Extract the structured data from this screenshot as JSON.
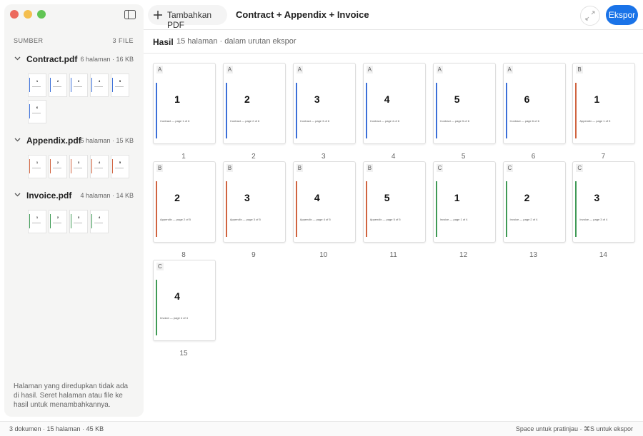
{
  "toolbar": {
    "add_button": "Tambahkan PDF",
    "title": "Contract + Appendix + Invoice",
    "export_button": "Ekspor"
  },
  "sidebar": {
    "heading": "SUMBER",
    "count": "3 FILE",
    "files": [
      {
        "name": "Contract.pdf",
        "meta": "6 halaman · 16 KB",
        "pages": [
          "1",
          "2",
          "3",
          "4",
          "5",
          "6"
        ]
      },
      {
        "name": "Appendix.pdf",
        "meta": "5 halaman · 15 KB",
        "pages": [
          "1",
          "2",
          "3",
          "4",
          "5"
        ]
      },
      {
        "name": "Invoice.pdf",
        "meta": "4 halaman · 14 KB",
        "pages": [
          "1",
          "2",
          "3",
          "4"
        ]
      }
    ],
    "hint": "Halaman yang diredupkan tidak ada di hasil. Seret halaman atau file ke hasil untuk menambahkannya."
  },
  "result": {
    "title": "Hasil",
    "subtitle": "15 halaman · dalam urutan ekspor",
    "pages": [
      {
        "badge": "A",
        "number": "1",
        "caption": "Contract — page 1 of 6",
        "index": "1"
      },
      {
        "badge": "A",
        "number": "2",
        "caption": "Contract — page 2 of 6",
        "index": "2"
      },
      {
        "badge": "A",
        "number": "3",
        "caption": "Contract — page 3 of 6",
        "index": "3"
      },
      {
        "badge": "A",
        "number": "4",
        "caption": "Contract — page 4 of 6",
        "index": "4"
      },
      {
        "badge": "A",
        "number": "5",
        "caption": "Contract — page 5 of 6",
        "index": "5"
      },
      {
        "badge": "A",
        "number": "6",
        "caption": "Contract — page 6 of 6",
        "index": "6"
      },
      {
        "badge": "B",
        "number": "1",
        "caption": "Appendix — page 1 of 5",
        "index": "7"
      },
      {
        "badge": "B",
        "number": "2",
        "caption": "Appendix — page 2 of 5",
        "index": "8"
      },
      {
        "badge": "B",
        "number": "3",
        "caption": "Appendix — page 3 of 5",
        "index": "9"
      },
      {
        "badge": "B",
        "number": "4",
        "caption": "Appendix — page 4 of 5",
        "index": "10"
      },
      {
        "badge": "B",
        "number": "5",
        "caption": "Appendix — page 5 of 5",
        "index": "11"
      },
      {
        "badge": "C",
        "number": "1",
        "caption": "Invoice — page 1 of 4",
        "index": "12"
      },
      {
        "badge": "C",
        "number": "2",
        "caption": "Invoice — page 2 of 4",
        "index": "13"
      },
      {
        "badge": "C",
        "number": "3",
        "caption": "Invoice — page 3 of 4",
        "index": "14"
      },
      {
        "badge": "C",
        "number": "4",
        "caption": "Invoice — page 4 of 4",
        "index": "15"
      }
    ]
  },
  "status": {
    "left": "3 dokumen · 15 halaman · 45 KB",
    "right": "Space untuk pratinjau · ⌘S untuk ekspor"
  }
}
